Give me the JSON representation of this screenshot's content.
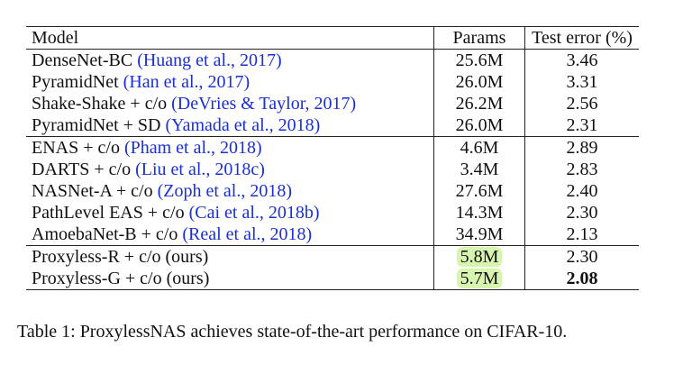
{
  "table": {
    "headers": {
      "model": "Model",
      "params": "Params",
      "error": "Test error (%)"
    },
    "groups": [
      {
        "rows": [
          {
            "model": "DenseNet-BC",
            "cite": "(Huang et al., 2017)",
            "params": "25.6M",
            "error": "3.46",
            "highlight": false,
            "bold_error": false
          },
          {
            "model": "PyramidNet",
            "cite": "(Han et al., 2017)",
            "params": "26.0M",
            "error": "3.31",
            "highlight": false,
            "bold_error": false
          },
          {
            "model": "Shake-Shake + c/o",
            "cite": "(DeVries & Taylor, 2017)",
            "params": "26.2M",
            "error": "2.56",
            "highlight": false,
            "bold_error": false
          },
          {
            "model": "PyramidNet + SD",
            "cite": "(Yamada et al., 2018)",
            "params": "26.0M",
            "error": "2.31",
            "highlight": false,
            "bold_error": false
          }
        ]
      },
      {
        "rows": [
          {
            "model": "ENAS + c/o",
            "cite": "(Pham et al., 2018)",
            "params": "4.6M",
            "error": "2.89",
            "highlight": false,
            "bold_error": false
          },
          {
            "model": "DARTS + c/o",
            "cite": "(Liu et al., 2018c)",
            "params": "3.4M",
            "error": "2.83",
            "highlight": false,
            "bold_error": false
          },
          {
            "model": "NASNet-A + c/o",
            "cite": "(Zoph et al., 2018)",
            "params": "27.6M",
            "error": "2.40",
            "highlight": false,
            "bold_error": false
          },
          {
            "model": "PathLevel EAS + c/o",
            "cite": "(Cai et al., 2018b)",
            "params": "14.3M",
            "error": "2.30",
            "highlight": false,
            "bold_error": false
          },
          {
            "model": "AmoebaNet-B + c/o",
            "cite": "(Real et al., 2018)",
            "params": "34.9M",
            "error": "2.13",
            "highlight": false,
            "bold_error": false
          }
        ]
      },
      {
        "rows": [
          {
            "model": "Proxyless-R + c/o (ours)",
            "cite": "",
            "params": "5.8M",
            "error": "2.30",
            "highlight": true,
            "bold_error": false
          },
          {
            "model": "Proxyless-G + c/o (ours)",
            "cite": "",
            "params": "5.7M",
            "error": "2.08",
            "highlight": true,
            "bold_error": true
          }
        ]
      }
    ]
  },
  "caption": "Table 1: ProxylessNAS achieves state-of-the-art performance on CIFAR-10.",
  "colors": {
    "citation": "#1a2fd6",
    "highlight": "#d8f5b0"
  }
}
